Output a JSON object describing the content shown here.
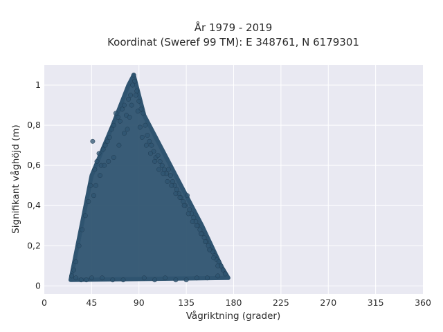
{
  "chart_data": {
    "type": "scatter",
    "title_line1": "År 1979 - 2019",
    "title_line2": "Koordinat (Sweref 99 TM): E 348761, N 6179301",
    "xlabel": "Vågriktning (grader)",
    "ylabel": "Signifikant våghöjd (m)",
    "xlim": [
      0,
      360
    ],
    "ylim": [
      -0.04,
      1.1
    ],
    "x_ticks": [
      0,
      45,
      90,
      135,
      180,
      225,
      270,
      315,
      360
    ],
    "x_tick_labels": [
      "0",
      "45",
      "90",
      "135",
      "180",
      "225",
      "270",
      "315",
      "360"
    ],
    "y_ticks": [
      0,
      0.2,
      0.4,
      0.6,
      0.8,
      1.0
    ],
    "y_tick_labels": [
      "0",
      "0,2",
      "0,4",
      "0,6",
      "0,8",
      "1"
    ],
    "grid": true,
    "series": [
      {
        "marker_color": "#2f5470",
        "envelope": [
          [
            25,
            0.03
          ],
          [
            45,
            0.55
          ],
          [
            65,
            0.8
          ],
          [
            80,
            1.0
          ],
          [
            85,
            1.05
          ],
          [
            95,
            0.85
          ],
          [
            120,
            0.6
          ],
          [
            150,
            0.3
          ],
          [
            168,
            0.1
          ],
          [
            175,
            0.04
          ],
          [
            25,
            0.03
          ]
        ],
        "x": [
          26,
          28,
          30,
          33,
          36,
          39,
          42,
          44,
          46,
          48,
          50,
          52,
          54,
          56,
          58,
          60,
          62,
          64,
          66,
          68,
          70,
          72,
          74,
          76,
          78,
          80,
          82,
          84,
          85,
          86,
          88,
          90,
          92,
          94,
          96,
          98,
          100,
          102,
          104,
          106,
          108,
          110,
          112,
          114,
          116,
          118,
          120,
          122,
          124,
          126,
          128,
          130,
          132,
          134,
          136,
          138,
          140,
          142,
          144,
          146,
          148,
          150,
          152,
          154,
          156,
          158,
          160,
          162,
          164,
          166,
          168,
          170,
          172,
          47,
          49,
          53,
          57,
          61,
          66,
          71,
          76,
          79,
          81,
          83,
          87,
          89,
          91,
          93,
          97,
          101,
          105,
          109,
          113,
          117,
          121,
          125,
          129,
          133,
          137,
          141,
          145,
          149,
          153,
          157,
          161,
          165,
          30,
          35,
          40,
          45,
          55,
          65,
          75,
          95,
          105,
          115,
          125,
          135,
          145,
          155,
          165
        ],
        "y": [
          0.05,
          0.08,
          0.12,
          0.2,
          0.28,
          0.35,
          0.42,
          0.5,
          0.72,
          0.58,
          0.62,
          0.66,
          0.6,
          0.68,
          0.7,
          0.72,
          0.74,
          0.78,
          0.8,
          0.86,
          0.84,
          0.82,
          0.88,
          0.9,
          0.85,
          0.93,
          0.95,
          1.0,
          1.05,
          1.02,
          0.97,
          0.92,
          0.88,
          0.86,
          0.8,
          0.75,
          0.72,
          0.7,
          0.67,
          0.64,
          0.65,
          0.62,
          0.6,
          0.58,
          0.56,
          0.58,
          0.55,
          0.52,
          0.5,
          0.48,
          0.46,
          0.44,
          0.42,
          0.4,
          0.45,
          0.38,
          0.36,
          0.34,
          0.32,
          0.3,
          0.28,
          0.26,
          0.24,
          0.22,
          0.2,
          0.18,
          0.17,
          0.15,
          0.13,
          0.12,
          0.1,
          0.08,
          0.06,
          0.45,
          0.5,
          0.55,
          0.6,
          0.62,
          0.64,
          0.7,
          0.76,
          0.78,
          0.84,
          0.9,
          0.95,
          0.87,
          0.79,
          0.74,
          0.7,
          0.66,
          0.62,
          0.58,
          0.56,
          0.52,
          0.5,
          0.46,
          0.44,
          0.4,
          0.36,
          0.32,
          0.3,
          0.26,
          0.22,
          0.18,
          0.14,
          0.1,
          0.04,
          0.03,
          0.03,
          0.04,
          0.04,
          0.03,
          0.03,
          0.04,
          0.03,
          0.04,
          0.03,
          0.03,
          0.04,
          0.04,
          0.05
        ]
      }
    ]
  }
}
